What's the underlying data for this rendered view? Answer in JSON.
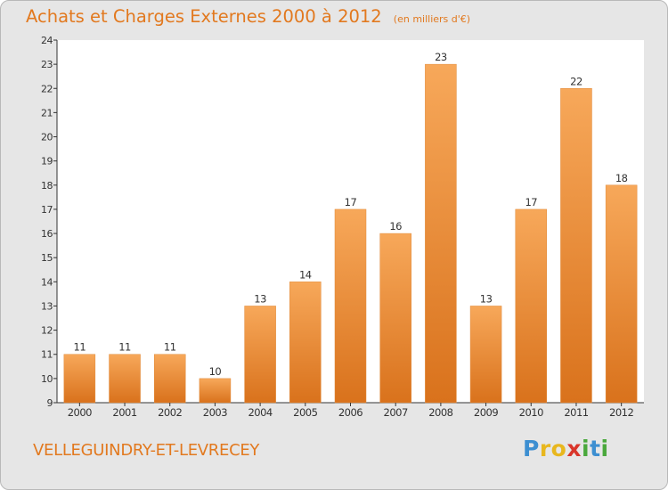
{
  "title": "Achats et Charges Externes 2000 à 2012",
  "unit": "(en milliers d'€)",
  "commune": "VELLEGUINDRY-ET-LEVRECEY",
  "logo": {
    "text": "Proxiti",
    "letters": [
      {
        "char": "P",
        "color": "#3d8fd1"
      },
      {
        "char": "r",
        "color": "#e8b71e"
      },
      {
        "char": "o",
        "color": "#e8b71e"
      },
      {
        "char": "x",
        "color": "#d9352a"
      },
      {
        "char": "i",
        "color": "#4aa83c"
      },
      {
        "char": "t",
        "color": "#3d8fd1"
      },
      {
        "char": "i",
        "color": "#4aa83c"
      }
    ]
  },
  "colors": {
    "bar_top": "#f7a85a",
    "bar_bottom": "#d9721c",
    "bar_edge": "#e08a3a",
    "accent": "#e2791f",
    "plot_bg": "#ffffff",
    "panel_bg": "#e6e6e6"
  },
  "chart_data": {
    "type": "bar",
    "title": "Achats et Charges Externes 2000 à 2012",
    "subtitle": "(en milliers d'€)",
    "categories": [
      "2000",
      "2001",
      "2002",
      "2003",
      "2004",
      "2005",
      "2006",
      "2007",
      "2008",
      "2009",
      "2010",
      "2011",
      "2012"
    ],
    "values": [
      11,
      11,
      11,
      10,
      13,
      14,
      17,
      16,
      23,
      13,
      17,
      22,
      18
    ],
    "ylim": [
      9,
      24
    ],
    "yticks": [
      9,
      10,
      11,
      12,
      13,
      14,
      15,
      16,
      17,
      18,
      19,
      20,
      21,
      22,
      23,
      24
    ],
    "xlabel": "",
    "ylabel": "",
    "grid": false,
    "legend": "none"
  }
}
